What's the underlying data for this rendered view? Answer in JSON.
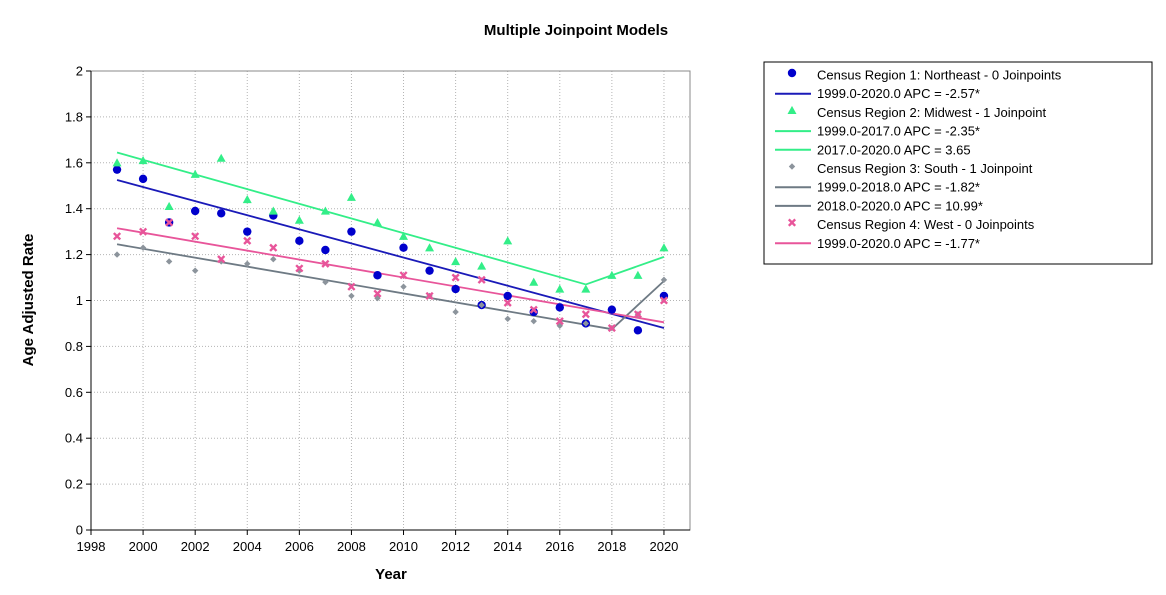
{
  "chart_data": {
    "type": "scatter",
    "title": "Multiple Joinpoint Models",
    "xlabel": "Year",
    "ylabel": "Age Adjusted Rate",
    "xlim": [
      1998,
      2021
    ],
    "ylim": [
      0,
      2
    ],
    "xticks": [
      1998,
      2000,
      2002,
      2004,
      2006,
      2008,
      2010,
      2012,
      2014,
      2016,
      2018,
      2020
    ],
    "yticks": [
      0,
      0.2,
      0.4,
      0.6,
      0.8,
      1,
      1.2,
      1.4,
      1.6,
      1.8,
      2
    ],
    "ytick_labels": [
      "0",
      "0.2",
      "0.4",
      "0.6",
      "0.8",
      "1",
      "1.2",
      "1.4",
      "1.6",
      "1.8",
      "2"
    ],
    "grid": true,
    "legend_position": "right",
    "series": [
      {
        "name": "Census Region 1: Northeast - 0 Joinpoints",
        "marker": "circle",
        "color": "#0000cc",
        "x": [
          1999,
          2000,
          2001,
          2002,
          2003,
          2004,
          2005,
          2006,
          2007,
          2008,
          2009,
          2010,
          2011,
          2012,
          2013,
          2014,
          2015,
          2016,
          2017,
          2018,
          2019,
          2020
        ],
        "y": [
          1.57,
          1.53,
          1.34,
          1.39,
          1.38,
          1.3,
          1.37,
          1.26,
          1.22,
          1.3,
          1.11,
          1.23,
          1.13,
          1.05,
          0.98,
          1.02,
          0.95,
          0.97,
          0.9,
          0.96,
          0.87,
          1.02
        ]
      },
      {
        "name": "Census Region 2: Midwest - 1 Joinpoint",
        "marker": "triangle",
        "color": "#33ee88",
        "x": [
          1999,
          2000,
          2001,
          2002,
          2003,
          2004,
          2005,
          2006,
          2007,
          2008,
          2009,
          2010,
          2011,
          2012,
          2013,
          2014,
          2015,
          2016,
          2017,
          2018,
          2019,
          2020
        ],
        "y": [
          1.6,
          1.61,
          1.41,
          1.55,
          1.62,
          1.44,
          1.39,
          1.35,
          1.39,
          1.45,
          1.34,
          1.28,
          1.23,
          1.17,
          1.15,
          1.26,
          1.08,
          1.05,
          1.05,
          1.11,
          1.11,
          1.23
        ]
      },
      {
        "name": "Census Region 3: South - 1 Joinpoint",
        "marker": "diamond",
        "color": "#8c949c",
        "x": [
          1999,
          2000,
          2001,
          2002,
          2003,
          2004,
          2005,
          2006,
          2007,
          2008,
          2009,
          2010,
          2011,
          2012,
          2013,
          2014,
          2015,
          2016,
          2017,
          2018,
          2019,
          2020
        ],
        "y": [
          1.2,
          1.23,
          1.17,
          1.13,
          1.17,
          1.16,
          1.18,
          1.13,
          1.08,
          1.02,
          1.01,
          1.06,
          1.02,
          0.95,
          0.98,
          0.92,
          0.91,
          0.89,
          0.9,
          0.88,
          0.94,
          1.09
        ]
      },
      {
        "name": "Census Region 4: West - 0 Joinpoints",
        "marker": "x",
        "color": "#e8559a",
        "x": [
          1999,
          2000,
          2001,
          2002,
          2003,
          2004,
          2005,
          2006,
          2007,
          2008,
          2009,
          2010,
          2011,
          2012,
          2013,
          2014,
          2015,
          2016,
          2017,
          2018,
          2019,
          2020
        ],
        "y": [
          1.28,
          1.3,
          1.34,
          1.28,
          1.18,
          1.26,
          1.23,
          1.14,
          1.16,
          1.06,
          1.03,
          1.11,
          1.02,
          1.1,
          1.09,
          0.99,
          0.96,
          0.91,
          0.94,
          0.88,
          0.94,
          1.0
        ]
      }
    ],
    "trend_lines": [
      {
        "name": "1999.0-2020.0 APC  = -2.57*",
        "color": "#1a1ab8",
        "x": [
          1999,
          2020
        ],
        "y": [
          1.525,
          0.88
        ]
      },
      {
        "name": "1999.0-2017.0 APC  = -2.35*",
        "color": "#33ee88",
        "x": [
          1999,
          2017
        ],
        "y": [
          1.645,
          1.07
        ]
      },
      {
        "name": "2017.0-2020.0 APC  =  3.65",
        "color": "#33ee88",
        "x": [
          2017,
          2020
        ],
        "y": [
          1.07,
          1.19
        ]
      },
      {
        "name": "1999.0-2018.0 APC  = -1.82*",
        "color": "#6e7a84",
        "x": [
          1999,
          2018
        ],
        "y": [
          1.245,
          0.875
        ]
      },
      {
        "name": "2018.0-2020.0 APC  = 10.99*",
        "color": "#6e7a84",
        "x": [
          2018,
          2020
        ],
        "y": [
          0.875,
          1.085
        ]
      },
      {
        "name": "1999.0-2020.0 APC  = -1.77*",
        "color": "#e8559a",
        "x": [
          1999,
          2020
        ],
        "y": [
          1.315,
          0.905
        ]
      }
    ],
    "legend_entries": [
      {
        "label": "Census Region 1: Northeast - 0 Joinpoints",
        "kind": "marker",
        "marker": "circle",
        "color": "#0000cc"
      },
      {
        "label": "1999.0-2020.0 APC  = -2.57*",
        "kind": "line",
        "color": "#1a1ab8"
      },
      {
        "label": "Census Region 2: Midwest - 1 Joinpoint",
        "kind": "marker",
        "marker": "triangle",
        "color": "#33ee88"
      },
      {
        "label": "1999.0-2017.0 APC  = -2.35*",
        "kind": "line",
        "color": "#33ee88"
      },
      {
        "label": "2017.0-2020.0 APC  =  3.65",
        "kind": "line",
        "color": "#33ee88"
      },
      {
        "label": "Census Region 3: South - 1 Joinpoint",
        "kind": "marker",
        "marker": "diamond",
        "color": "#8c949c"
      },
      {
        "label": "1999.0-2018.0 APC  = -1.82*",
        "kind": "line",
        "color": "#6e7a84"
      },
      {
        "label": "2018.0-2020.0 APC  = 10.99*",
        "kind": "line",
        "color": "#6e7a84"
      },
      {
        "label": "Census Region 4: West - 0 Joinpoints",
        "kind": "marker",
        "marker": "x",
        "color": "#e8559a"
      },
      {
        "label": "1999.0-2020.0 APC  = -1.77*",
        "kind": "line",
        "color": "#e8559a"
      }
    ]
  }
}
